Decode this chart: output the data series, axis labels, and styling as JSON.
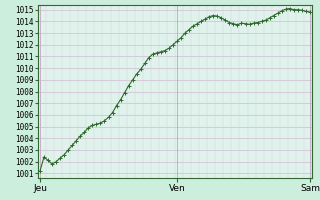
{
  "title": "",
  "x_labels": [
    "Jeu",
    "Ven",
    "Sam"
  ],
  "y_min": 1001,
  "y_max": 1015,
  "y_ticks": [
    1001,
    1002,
    1003,
    1004,
    1005,
    1006,
    1007,
    1008,
    1009,
    1010,
    1011,
    1012,
    1013,
    1014,
    1015
  ],
  "line_color": "#2d6a2d",
  "marker": "+",
  "bg_color": "#cceedd",
  "plot_bg_color": "#dff2ec",
  "grid_color": "#c8afc8",
  "grid_color_light": "#ddd0dd",
  "spine_color": "#336633",
  "pressure_values": [
    1001.2,
    1002.4,
    1002.1,
    1001.8,
    1002.0,
    1002.3,
    1002.6,
    1003.0,
    1003.4,
    1003.8,
    1004.2,
    1004.5,
    1004.9,
    1005.1,
    1005.2,
    1005.3,
    1005.5,
    1005.8,
    1006.2,
    1006.8,
    1007.3,
    1007.9,
    1008.5,
    1009.0,
    1009.5,
    1009.9,
    1010.4,
    1010.9,
    1011.2,
    1011.3,
    1011.4,
    1011.5,
    1011.7,
    1012.0,
    1012.3,
    1012.6,
    1013.0,
    1013.3,
    1013.6,
    1013.8,
    1014.0,
    1014.2,
    1014.4,
    1014.5,
    1014.45,
    1014.3,
    1014.1,
    1013.9,
    1013.8,
    1013.7,
    1013.85,
    1013.8,
    1013.75,
    1013.85,
    1013.9,
    1014.0,
    1014.1,
    1014.3,
    1014.5,
    1014.7,
    1014.9,
    1015.05,
    1015.1,
    1015.0,
    1015.0,
    1014.95,
    1014.85,
    1014.8
  ],
  "n_points": 68,
  "jeu_idx": 0,
  "ven_idx": 34,
  "sam_idx": 67
}
